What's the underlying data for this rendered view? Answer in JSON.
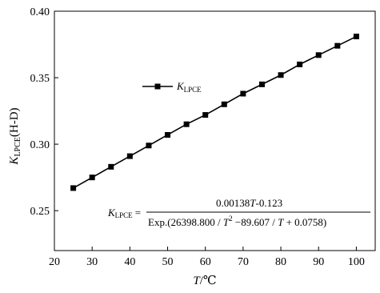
{
  "chart_data": {
    "type": "line",
    "x": [
      25,
      30,
      35,
      40,
      45,
      50,
      55,
      60,
      65,
      70,
      75,
      80,
      85,
      90,
      95,
      100
    ],
    "series": [
      {
        "name": "K_LPCE",
        "values": [
          0.267,
          0.275,
          0.283,
          0.291,
          0.299,
          0.307,
          0.315,
          0.322,
          0.33,
          0.338,
          0.345,
          0.352,
          0.36,
          0.367,
          0.374,
          0.381
        ]
      }
    ],
    "xlim": [
      20,
      105
    ],
    "ylim": [
      0.22,
      0.4
    ],
    "x_ticks": [
      20,
      30,
      40,
      50,
      60,
      70,
      80,
      90,
      100
    ],
    "y_ticks": [
      0.25,
      0.3,
      0.35,
      0.4
    ],
    "grid": false,
    "legend_position": "upper-left",
    "marker": "square",
    "color": "#000000"
  },
  "labels": {
    "xlabel_T": "T",
    "xlabel_unit": "/℃",
    "ylabel_K": "K",
    "ylabel_sub": "LPCE",
    "ylabel_suffix": "(H-D)",
    "legend_K": "K",
    "legend_sub": "LPCE"
  },
  "formula": {
    "lhs_K": "K",
    "lhs_sub": "LPCE",
    "equals": "=",
    "numerator_a": "0.00138",
    "numerator_T": "T",
    "numerator_b": "-0.123",
    "denominator_a": "Exp.(26398.800 / ",
    "denominator_T1": "T",
    "denominator_exp": "2",
    "denominator_b": " −89.607 / ",
    "denominator_T2": "T",
    "denominator_c": " + 0.0758)"
  }
}
